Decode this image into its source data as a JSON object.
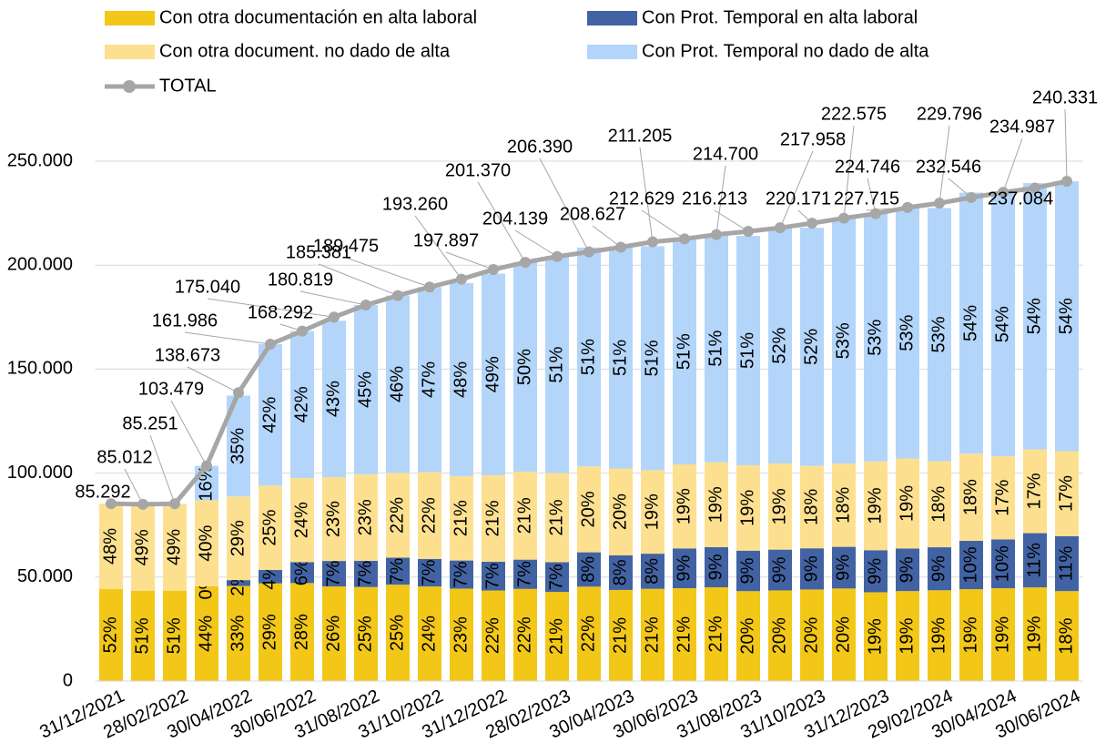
{
  "chart_data": {
    "type": "bar",
    "stacked": true,
    "categories": [
      "31/12/2021",
      null,
      "28/02/2022",
      null,
      "30/04/2022",
      null,
      "30/06/2022",
      null,
      "31/08/2022",
      null,
      "31/10/2022",
      null,
      "31/12/2022",
      null,
      "28/02/2023",
      null,
      "30/04/2023",
      null,
      "30/06/2023",
      null,
      "31/08/2023",
      null,
      "31/10/2023",
      null,
      "31/12/2023",
      null,
      "29/02/2024",
      null,
      "30/04/2024",
      null,
      "30/06/2024"
    ],
    "series": [
      {
        "name": "Con otra documentación en alta laboral",
        "color": "#f2c718",
        "label_color": "#ffffff",
        "values": [
          52,
          51,
          51,
          44,
          33,
          29,
          28,
          26,
          25,
          25,
          24,
          23,
          22,
          22,
          21,
          22,
          21,
          21,
          21,
          21,
          20,
          20,
          20,
          20,
          19,
          19,
          19,
          19,
          19,
          19,
          18
        ],
        "value_labels": [
          "52%",
          "51%",
          "51%",
          "44%",
          "33%",
          "29%",
          "28%",
          "26%",
          "25%",
          "25%",
          "24%",
          "23%",
          "22%",
          "22%",
          "21%",
          "22%",
          "21%",
          "21%",
          "21%",
          "21%",
          "20%",
          "20%",
          "20%",
          "20%",
          "19%",
          "19%",
          "19%",
          "19%",
          "19%",
          "19%",
          "18%"
        ]
      },
      {
        "name": "Con Prot. Temporal en alta laboral",
        "color": "#4263a3",
        "label_color": "#ffffff",
        "values": [
          null,
          null,
          null,
          0,
          2,
          4,
          6,
          7,
          7,
          7,
          7,
          7,
          7,
          7,
          7,
          8,
          8,
          8,
          9,
          9,
          9,
          9,
          9,
          9,
          9,
          9,
          9,
          10,
          10,
          11,
          11
        ],
        "value_labels": [
          null,
          null,
          null,
          "0%",
          "2%",
          "4%",
          "6%",
          "7%",
          "7%",
          "7%",
          "7%",
          "7%",
          "7%",
          "7%",
          "7%",
          "8%",
          "8%",
          "8%",
          "9%",
          "9%",
          "9%",
          "9%",
          "9%",
          "9%",
          "9%",
          "9%",
          "9%",
          "10%",
          "10%",
          "11%",
          "11%"
        ]
      },
      {
        "name": "Con otra document. no dado de alta",
        "color": "#fde08f",
        "label_color": "#000000",
        "values": [
          48,
          49,
          49,
          40,
          29,
          25,
          24,
          23,
          23,
          22,
          22,
          21,
          21,
          21,
          21,
          20,
          20,
          19,
          19,
          19,
          19,
          19,
          18,
          18,
          19,
          19,
          18,
          18,
          17,
          17,
          17
        ],
        "value_labels": [
          "48%",
          "49%",
          "49%",
          "40%",
          "29%",
          "25%",
          "24%",
          "23%",
          "23%",
          "22%",
          "22%",
          "21%",
          "21%",
          "21%",
          "21%",
          "20%",
          "20%",
          "19%",
          "19%",
          "19%",
          "19%",
          "19%",
          "18%",
          "18%",
          "19%",
          "19%",
          "18%",
          "18%",
          "17%",
          "17%",
          "17%"
        ]
      },
      {
        "name": "Con Prot. Temporal no dado de alta",
        "color": "#b3d5fa",
        "label_color": "#000000",
        "values": [
          null,
          null,
          null,
          16,
          35,
          42,
          42,
          43,
          45,
          46,
          47,
          48,
          49,
          50,
          51,
          51,
          51,
          51,
          51,
          51,
          51,
          52,
          52,
          53,
          53,
          53,
          53,
          54,
          54,
          54,
          54
        ],
        "value_labels": [
          null,
          null,
          null,
          "16%",
          "35%",
          "42%",
          "42%",
          "43%",
          "45%",
          "46%",
          "47%",
          "48%",
          "49%",
          "50%",
          "51%",
          "51%",
          "51%",
          "51%",
          "51%",
          "51%",
          "51%",
          "52%",
          "52%",
          "53%",
          "53%",
          "53%",
          "53%",
          "54%",
          "54%",
          "54%",
          "54%"
        ]
      },
      {
        "name": "TOTAL",
        "type": "line",
        "color": "#a6a6a6",
        "values": [
          85292,
          85012,
          85251,
          103479,
          138673,
          161986,
          168292,
          175040,
          180819,
          185381,
          189475,
          193260,
          197897,
          201370,
          204139,
          206390,
          208627,
          211205,
          212629,
          214700,
          216213,
          217958,
          220171,
          222575,
          224746,
          227715,
          229796,
          232546,
          234987,
          237084,
          240331
        ],
        "value_labels": [
          "85.292",
          "85.012",
          "85.251",
          "103.479",
          "138.673",
          "161.986",
          "168.292",
          "175.040",
          "180.819",
          "185.381",
          "189.475",
          "193.260",
          "197.897",
          "201.370",
          "204.139",
          "206.390",
          "208.627",
          "211.205",
          "212.629",
          "214.700",
          "216.213",
          "217.958",
          "220.171",
          "222.575",
          "224.746",
          "227.715",
          "229.796",
          "232.546",
          "234.987",
          "237.084",
          "240.331"
        ]
      }
    ],
    "ylim": [
      0,
      250000
    ],
    "yticks": [
      0,
      {
        "value": 50000,
        "label": "50.000"
      },
      {
        "value": 100000,
        "label": "100.000"
      },
      {
        "value": 150000,
        "label": "150.000"
      },
      {
        "value": 200000,
        "label": "200.000"
      },
      {
        "value": 250000,
        "label": "250.000"
      }
    ],
    "grid": true,
    "legend": "top"
  }
}
